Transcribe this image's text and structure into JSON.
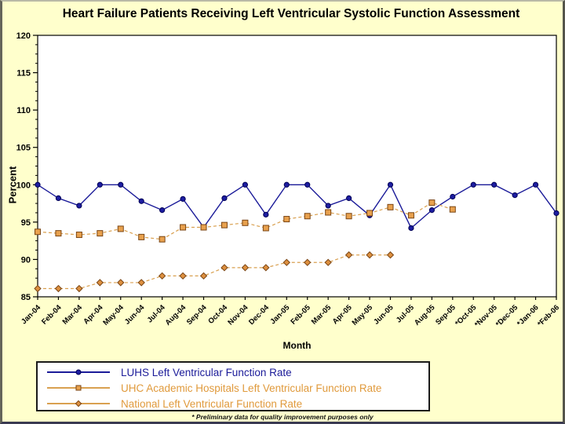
{
  "slide": {
    "footnote": "* Preliminary data for quality improvement purposes only",
    "background_color": "#FFFFCC"
  },
  "chart_data": {
    "type": "line",
    "title": "Heart Failure Patients Receiving Left Ventricular Systolic Function Assessment",
    "xlabel": "Month",
    "ylabel": "Percent",
    "ylim": [
      85,
      120
    ],
    "yticks": [
      85,
      90,
      95,
      100,
      105,
      110,
      115,
      120
    ],
    "minor_tick_step": 1.25,
    "grid": "off",
    "legend_position": "bottom",
    "plot_bg": "#FFFFFF",
    "categories": [
      "Jan-04",
      "Feb-04",
      "Mar-04",
      "Apr-04",
      "May-04",
      "Jun-04",
      "Jul-04",
      "Aug-04",
      "Sep-04",
      "Oct-04",
      "Nov-04",
      "Dec-04",
      "Jan-05",
      "Feb-05",
      "Mar-05",
      "Apr-05",
      "May-05",
      "Jun-05",
      "Jul-05",
      "Aug-05",
      "Sep-05",
      "*Oct-05",
      "*Nov-05",
      "*Dec-05",
      "*Jan-06",
      "*Feb-06"
    ],
    "series": [
      {
        "name": "LUHS Left Ventricular Function Rate",
        "marker": "circle",
        "dashed": false,
        "line_color": "#1b1b99",
        "marker_fill": "#1d1da1",
        "marker_stroke": "#000055",
        "label_color": "#1b1b99",
        "values": [
          100,
          98.2,
          97.2,
          100,
          100,
          97.8,
          96.6,
          98.1,
          94.3,
          98.2,
          100,
          96,
          100,
          100,
          97.2,
          98.2,
          95.9,
          100,
          94.2,
          96.6,
          98.4,
          100,
          100,
          98.6,
          100,
          96.2
        ]
      },
      {
        "name": "UHC Academic Hospitals Left Ventricular Function Rate",
        "marker": "square",
        "dashed": true,
        "line_color": "#D9A050",
        "marker_fill": "#E8A14E",
        "marker_stroke": "#7A4514",
        "label_color": "#E09A3C",
        "values": [
          93.7,
          93.5,
          93.3,
          93.5,
          94.1,
          93,
          92.7,
          94.3,
          94.3,
          94.6,
          94.9,
          94.2,
          95.4,
          95.8,
          96.3,
          95.8,
          96.2,
          97,
          95.9,
          97.6,
          96.7
        ]
      },
      {
        "name": "National Left Ventricular Function Rate",
        "marker": "diamond",
        "dashed": true,
        "line_color": "#D9A050",
        "marker_fill": "#DD9040",
        "marker_stroke": "#7A4514",
        "label_color": "#E09A3C",
        "values": [
          86.1,
          86.1,
          86.1,
          86.9,
          86.9,
          86.9,
          87.8,
          87.8,
          87.8,
          88.9,
          88.9,
          88.9,
          89.6,
          89.6,
          89.6,
          90.6,
          90.6,
          90.6
        ]
      }
    ]
  }
}
